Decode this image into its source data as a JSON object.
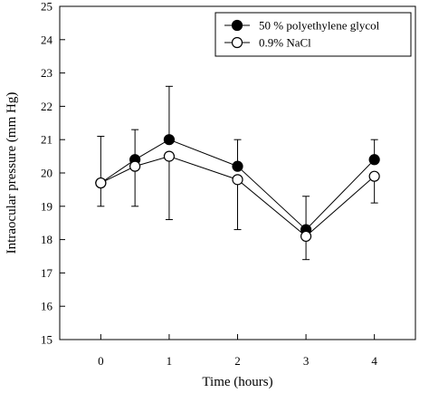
{
  "chart_data": {
    "type": "line",
    "title": "",
    "xlabel": "Time (hours)",
    "ylabel": "Intraocular pressure (mm Hg)",
    "xlim": [
      -0.6,
      4.6
    ],
    "ylim": [
      15,
      25
    ],
    "x_ticks": [
      0,
      1,
      2,
      3,
      4
    ],
    "y_ticks": [
      15,
      16,
      17,
      18,
      19,
      20,
      21,
      22,
      23,
      24,
      25
    ],
    "grid": false,
    "legend_position": "top-right",
    "series": [
      {
        "name": "50 % polyethylene glycol",
        "marker": "filled-circle",
        "color": "#000000",
        "x": [
          0,
          0.5,
          1,
          2,
          3,
          4
        ],
        "y": [
          19.7,
          20.4,
          21.0,
          20.2,
          18.3,
          20.4
        ],
        "error_upper": [
          21.1,
          21.3,
          22.6,
          21.0,
          19.3,
          21.0
        ]
      },
      {
        "name": "0.9% NaCl",
        "marker": "open-circle",
        "color": "#000000",
        "x": [
          0,
          0.5,
          1,
          2,
          3,
          4
        ],
        "y": [
          19.7,
          20.2,
          20.5,
          19.8,
          18.1,
          19.9
        ],
        "error_lower": [
          19.0,
          19.0,
          18.6,
          18.3,
          17.4,
          19.1
        ]
      }
    ]
  }
}
